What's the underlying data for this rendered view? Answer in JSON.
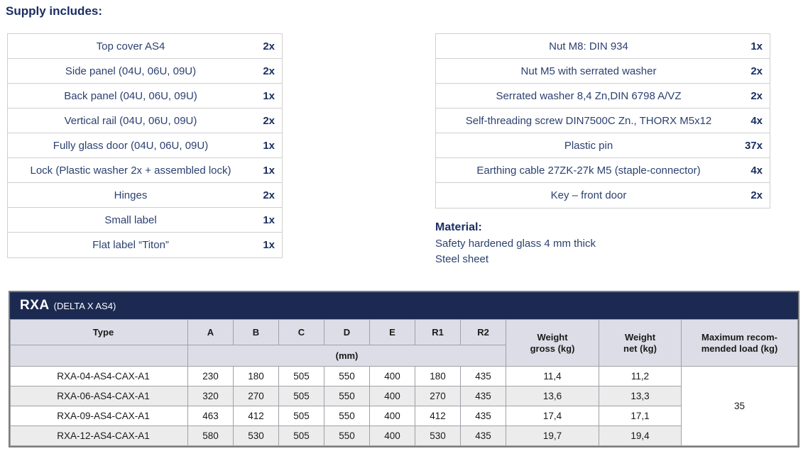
{
  "page": {
    "heading": "Supply includes:"
  },
  "supply_left": {
    "items": [
      {
        "name": "Top cover AS4",
        "qty": "2x"
      },
      {
        "name": "Side panel (04U, 06U, 09U)",
        "qty": "2x"
      },
      {
        "name": "Back panel (04U, 06U, 09U)",
        "qty": "1x"
      },
      {
        "name": "Vertical rail (04U, 06U, 09U)",
        "qty": "2x"
      },
      {
        "name": "Fully glass door (04U, 06U, 09U)",
        "qty": "1x"
      },
      {
        "name": "Lock (Plastic washer 2x + assembled lock)",
        "qty": "1x"
      },
      {
        "name": "Hinges",
        "qty": "2x"
      },
      {
        "name": "Small label",
        "qty": "1x"
      },
      {
        "name": "Flat label “Titon”",
        "qty": "1x"
      }
    ]
  },
  "supply_right": {
    "items": [
      {
        "name": "Nut M8: DIN 934",
        "qty": "1x"
      },
      {
        "name": "Nut M5 with serrated washer",
        "qty": "2x"
      },
      {
        "name": "Serrated washer 8,4 Zn,DIN 6798 A/VZ",
        "qty": "2x"
      },
      {
        "name": "Self-threading screw DIN7500C Zn., THORX M5x12",
        "qty": "4x"
      },
      {
        "name": "Plastic pin",
        "qty": "37x"
      },
      {
        "name": "Earthing cable 27ZK-27k M5 (staple-connector)",
        "qty": "4x"
      },
      {
        "name": "Key – front door",
        "qty": "2x"
      }
    ]
  },
  "material": {
    "heading": "Material:",
    "line1": "Safety hardened glass 4 mm thick",
    "line2": "Steel sheet"
  },
  "colors": {
    "navy_bar": "#1c2a52",
    "text_navy": "#2c4170",
    "bold_navy": "#1b2e63",
    "header_cell_bg": "#dddde7",
    "stripe_bg": "#ececec"
  },
  "spec_table": {
    "title": "RXA",
    "subtitle": "(DELTA X AS4)",
    "type_header": "Type",
    "dim_columns": [
      "A",
      "B",
      "C",
      "D",
      "E",
      "R1",
      "R2"
    ],
    "unit_label": "(mm)",
    "weight_gross": {
      "line1": "Weight",
      "line2": "gross (kg)"
    },
    "weight_net": {
      "line1": "Weight",
      "line2": "net (kg)"
    },
    "max_load": {
      "line1": "Maximum recom-",
      "line2": "mended load (kg)"
    },
    "max_load_value": "35",
    "rows": [
      {
        "type": "RXA-04-AS4-CAX-A1",
        "a": "230",
        "b": "180",
        "c": "505",
        "d": "550",
        "e": "400",
        "r1": "180",
        "r2": "435",
        "gross": "11,4",
        "net": "11,2"
      },
      {
        "type": "RXA-06-AS4-CAX-A1",
        "a": "320",
        "b": "270",
        "c": "505",
        "d": "550",
        "e": "400",
        "r1": "270",
        "r2": "435",
        "gross": "13,6",
        "net": "13,3"
      },
      {
        "type": "RXA-09-AS4-CAX-A1",
        "a": "463",
        "b": "412",
        "c": "505",
        "d": "550",
        "e": "400",
        "r1": "412",
        "r2": "435",
        "gross": "17,4",
        "net": "17,1"
      },
      {
        "type": "RXA-12-AS4-CAX-A1",
        "a": "580",
        "b": "530",
        "c": "505",
        "d": "550",
        "e": "400",
        "r1": "530",
        "r2": "435",
        "gross": "19,7",
        "net": "19,4"
      }
    ]
  }
}
